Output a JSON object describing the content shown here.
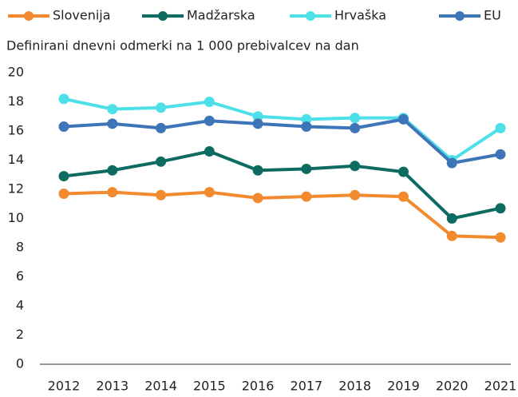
{
  "chart_data": {
    "type": "line",
    "subtitle": "Definirani dnevni odmerki na 1 000 prebivalcev na dan",
    "categories": [
      "2012",
      "2013",
      "2014",
      "2015",
      "2016",
      "2017",
      "2018",
      "2019",
      "2020",
      "2021"
    ],
    "series": [
      {
        "name": "Slovenija",
        "color": "#f28a30",
        "values": [
          11.7,
          11.8,
          11.6,
          11.8,
          11.4,
          11.5,
          11.6,
          11.5,
          8.8,
          8.7
        ]
      },
      {
        "name": "Madžarska",
        "color": "#0e6b62",
        "values": [
          12.9,
          13.3,
          13.9,
          14.6,
          13.3,
          13.4,
          13.6,
          13.2,
          10.0,
          10.7
        ]
      },
      {
        "name": "Hrvaška",
        "color": "#4de0e8",
        "values": [
          18.2,
          17.5,
          17.6,
          18.0,
          17.0,
          16.8,
          16.9,
          16.9,
          14.0,
          16.2
        ]
      },
      {
        "name": "EU",
        "color": "#3e74b8",
        "values": [
          16.3,
          16.5,
          16.2,
          16.7,
          16.5,
          16.3,
          16.2,
          16.8,
          13.8,
          14.4
        ]
      }
    ],
    "ylim": [
      0,
      20
    ],
    "yticks": [
      0,
      2,
      4,
      6,
      8,
      10,
      12,
      14,
      16,
      18,
      20
    ],
    "grid": false,
    "legend": "top"
  }
}
